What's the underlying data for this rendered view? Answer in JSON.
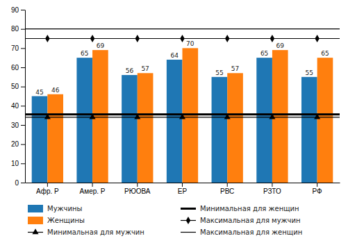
{
  "chart_data": {
    "type": "bar",
    "categories": [
      "Афр. Р",
      "Амер. Р",
      "РЮОВА",
      "ЕР",
      "РВС",
      "РЗТО",
      "РФ"
    ],
    "series": [
      {
        "name": "Мужчины",
        "values": [
          45,
          65,
          56,
          64,
          55,
          65,
          55
        ]
      },
      {
        "name": "Женщины",
        "values": [
          46,
          69,
          57,
          70,
          57,
          69,
          65
        ]
      }
    ],
    "reference_lines": [
      {
        "name": "Минимальная для мужчин",
        "value": 34,
        "color": "#000000",
        "marker": "triangle",
        "line_style": "solid"
      },
      {
        "name": "Минимальная для женщин",
        "value": 35.5,
        "color": "#000000",
        "line_style": "thick"
      },
      {
        "name": "Максимальная для мужчин",
        "value": 75,
        "color": "#000000",
        "marker": "diamond",
        "line_style": "solid"
      },
      {
        "name": "Максимальная для женщин",
        "value": 80,
        "color": "#000000",
        "line_style": "solid"
      }
    ],
    "ylim": [
      0,
      90
    ],
    "yticks": [
      0,
      10,
      20,
      30,
      40,
      50,
      60,
      70,
      80,
      90
    ],
    "data_labels": true,
    "grid": false,
    "legend": "bottom"
  }
}
